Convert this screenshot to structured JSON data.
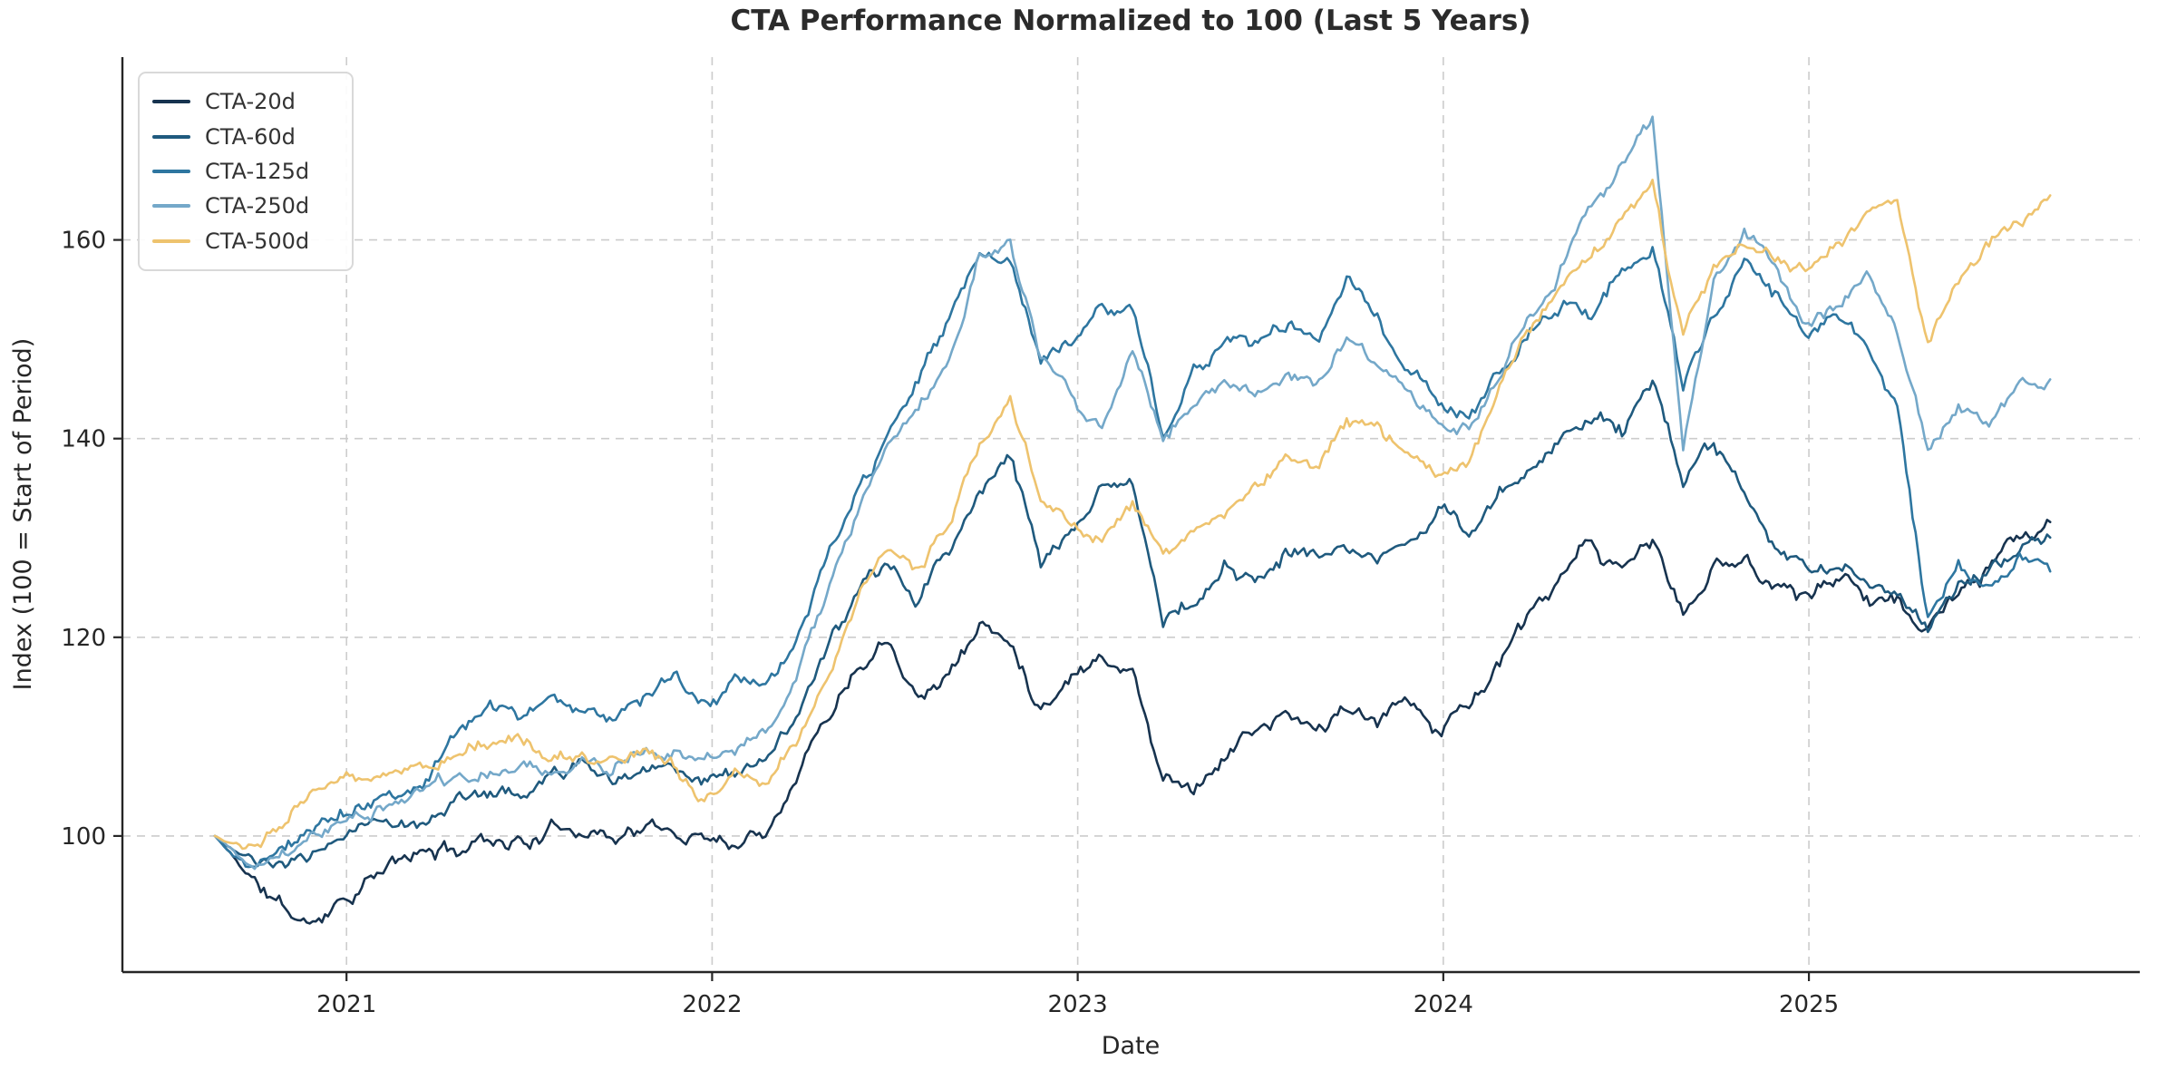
{
  "title": "CTA Performance Normalized to 100 (Last 5 Years)",
  "axes": {
    "xlabel": "Date",
    "ylabel": "Index (100 = Start of Period)",
    "x_tick_labels": [
      "2021",
      "2022",
      "2023",
      "2024",
      "2025"
    ],
    "x_tick_values": [
      2021,
      2022,
      2023,
      2024,
      2025
    ],
    "y_tick_labels": [
      "100",
      "120",
      "140",
      "160"
    ],
    "y_tick_values": [
      100,
      120,
      140,
      160
    ],
    "xlim": [
      2020.387,
      2025.905
    ],
    "ylim": [
      86.3,
      178.4
    ],
    "grid": true,
    "grid_style": "dashed",
    "spines": [
      "left",
      "bottom"
    ]
  },
  "legend": {
    "position": "upper-left",
    "entries": [
      {
        "label": "CTA-20d",
        "color": "#17334f"
      },
      {
        "label": "CTA-60d",
        "color": "#1f5a7e"
      },
      {
        "label": "CTA-125d",
        "color": "#2e76a0"
      },
      {
        "label": "CTA-250d",
        "color": "#74a8c9"
      },
      {
        "label": "CTA-500d",
        "color": "#eec36e"
      }
    ]
  },
  "style": {
    "background": "#ffffff",
    "grid_color": "#cccccc",
    "spine_color": "#262626",
    "line_width": 2.6
  },
  "chart_data": {
    "type": "line",
    "title": "CTA Performance Normalized to 100 (Last 5 Years)",
    "xlabel": "Date",
    "ylabel": "Index (100 = Start of Period)",
    "x_start_decimal_year": 2020.64,
    "x_end_decimal_year": 2025.66,
    "sampling": "monthly anchors, Aug 2020 through Aug 2025 (61 points per series), daily wiggle added at render time",
    "series": [
      {
        "name": "CTA-20d",
        "color": "#17334f",
        "values": [
          100,
          96.5,
          93.2,
          90.8,
          93.8,
          95.8,
          97.2,
          98.2,
          98.6,
          100.2,
          99.6,
          100.4,
          101.4,
          100.3,
          101.2,
          99.9,
          100.5,
          99.7,
          101.2,
          107,
          112.5,
          117.8,
          121,
          115.2,
          116.8,
          121.6,
          119.2,
          113.4,
          116.9,
          118.7,
          116.8,
          106,
          105.4,
          108.4,
          110.9,
          111.9,
          110.4,
          112.9,
          110.5,
          113.7,
          110.9,
          113.4,
          117.6,
          121.6,
          124.9,
          128.9,
          126.3,
          129.6,
          122,
          126.7,
          127.9,
          125.5,
          124.7,
          125.7,
          125.3,
          123.5,
          120.7,
          123.9,
          126.5,
          129,
          131.4
        ]
      },
      {
        "name": "CTA-60d",
        "color": "#1f5a7e",
        "values": [
          100,
          97.6,
          96,
          97.4,
          99.8,
          100.8,
          102.3,
          102,
          103.6,
          104.6,
          104.1,
          105.2,
          106.8,
          105.8,
          107.2,
          107.6,
          106.6,
          106.2,
          107.8,
          112.5,
          118,
          123.5,
          127,
          124.5,
          128,
          134.5,
          139,
          128,
          131,
          135,
          136,
          121.8,
          124,
          127.5,
          125.5,
          128.5,
          127,
          129.5,
          128,
          130.5,
          132,
          130,
          133.5,
          137,
          140.5,
          143,
          141,
          146.5,
          136,
          139.5,
          133.5,
          128,
          126.5,
          127.5,
          126.5,
          124.5,
          121.5,
          124.5,
          126.5,
          128.5,
          130.2
        ]
      },
      {
        "name": "CTA-125d",
        "color": "#2e76a0",
        "values": [
          100,
          97,
          98.5,
          100.5,
          102.5,
          104,
          105.5,
          107,
          111,
          112.5,
          112,
          112.5,
          113.5,
          112,
          114.5,
          116.5,
          113.5,
          115,
          113.5,
          119,
          127,
          134,
          140,
          145,
          152,
          158.5,
          157,
          147.5,
          150.5,
          153,
          152.5,
          140.5,
          147.5,
          150.5,
          149.5,
          151.5,
          150,
          156.5,
          153,
          147.5,
          143.5,
          142.3,
          146.5,
          150.5,
          154,
          152.5,
          157,
          160.5,
          145,
          152.5,
          157.5,
          154.5,
          150.5,
          151.8,
          149,
          143.5,
          121,
          126.5,
          124,
          128.5,
          127.4
        ]
      },
      {
        "name": "CTA-250d",
        "color": "#74a8c9",
        "values": [
          100,
          97.2,
          98,
          99.5,
          101,
          101.5,
          103.5,
          104.5,
          106,
          107,
          106.5,
          106,
          108,
          107,
          109.5,
          109,
          107.5,
          108.5,
          110,
          116,
          124,
          131.5,
          138.5,
          143,
          148,
          158.5,
          159,
          147.5,
          144,
          141,
          149.5,
          140.5,
          143.5,
          145.5,
          144.5,
          146.5,
          145,
          149.5,
          147,
          144.5,
          141.5,
          140.8,
          146.5,
          152.5,
          158,
          163,
          168,
          172.5,
          138,
          155,
          160.5,
          157,
          151,
          153.5,
          156.5,
          150,
          139,
          143.5,
          142,
          145.5,
          145.5
        ]
      },
      {
        "name": "CTA-500d",
        "color": "#eec36e",
        "values": [
          100,
          99,
          101,
          103.5,
          105.5,
          106.5,
          107.5,
          108,
          108.5,
          109.5,
          110,
          107.5,
          108.5,
          107,
          108.5,
          106.5,
          103.5,
          105.5,
          104.5,
          109,
          116,
          124,
          129.5,
          127,
          131.5,
          139,
          143.5,
          133,
          131.5,
          129.5,
          134,
          128,
          130.5,
          132.5,
          135.5,
          138.5,
          137.5,
          142,
          140.5,
          138.5,
          136,
          137.5,
          145,
          151,
          155.5,
          158,
          162,
          165.5,
          150,
          157.5,
          160.5,
          158.5,
          157,
          160,
          162.5,
          163.5,
          149,
          155.5,
          159.5,
          162,
          164.8
        ]
      }
    ]
  }
}
